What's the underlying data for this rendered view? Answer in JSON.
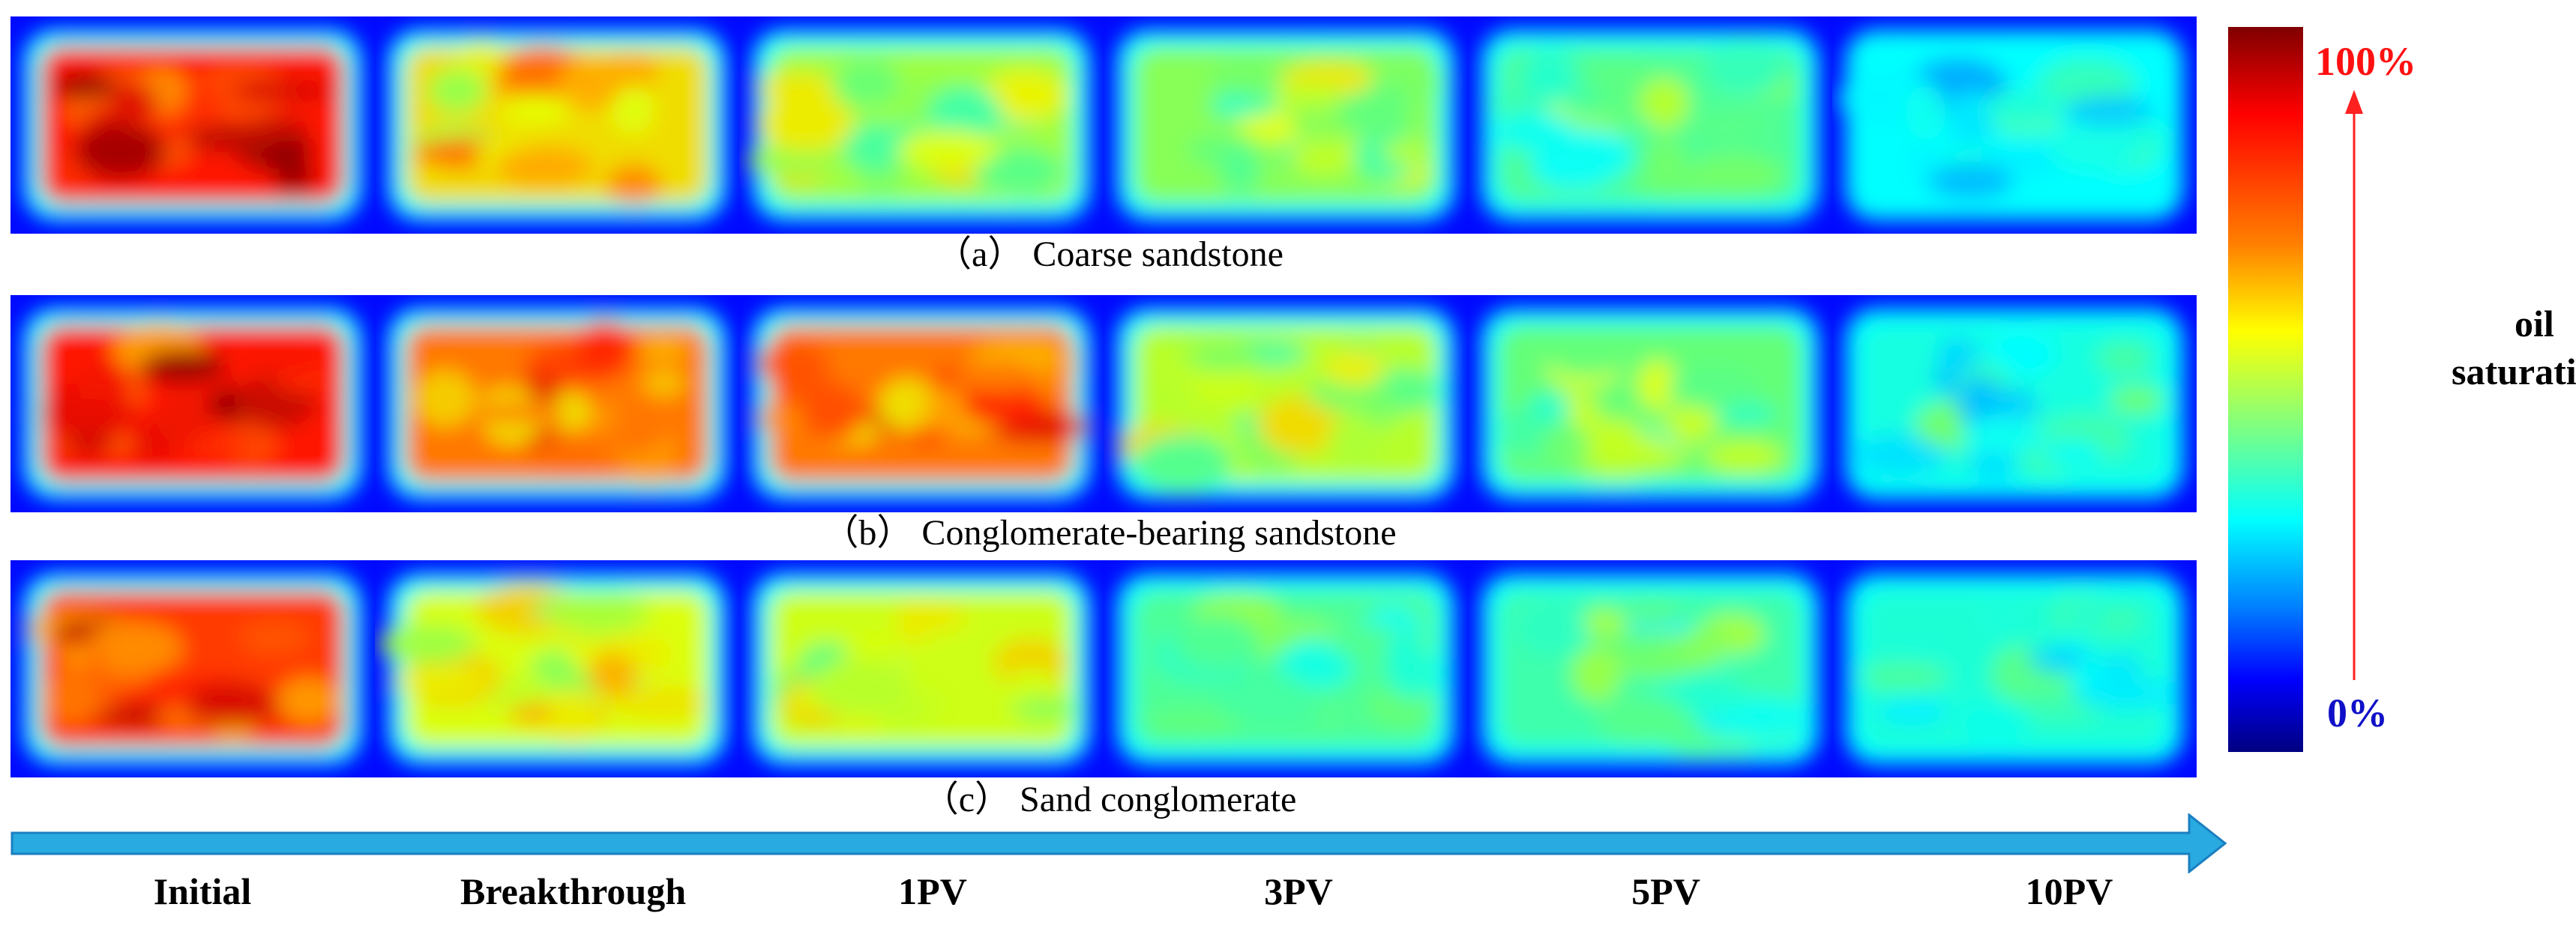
{
  "figure": {
    "stages": [
      "Initial",
      "Breakthrough",
      "1PV",
      "3PV",
      "5PV",
      "10PV"
    ],
    "rows": [
      {
        "caption": "（a） Coarse sandstone",
        "levels": [
          0.88,
          0.7,
          0.6,
          0.58,
          0.52,
          0.42
        ]
      },
      {
        "caption": "（b） Conglomerate-bearing sandstone",
        "levels": [
          0.88,
          0.8,
          0.8,
          0.62,
          0.55,
          0.45
        ]
      },
      {
        "caption": "（c） Sand conglomerate",
        "levels": [
          0.85,
          0.65,
          0.64,
          0.52,
          0.5,
          0.46
        ]
      }
    ]
  },
  "colorbar": {
    "max_label": "100%",
    "min_label": "0%",
    "title_line1": "oil",
    "title_line2": "saturation",
    "colors": [
      "#800000",
      "#ff0000",
      "#ff8000",
      "#ffff00",
      "#80ff80",
      "#00ffff",
      "#0080ff",
      "#0000ff",
      "#000080"
    ],
    "max_label_color": "#ff1010",
    "min_label_color": "#1010c8",
    "arrow_color": "#ff2020"
  },
  "time_arrow": {
    "color": "#29aae1",
    "edge_color": "#1a7fc0"
  }
}
